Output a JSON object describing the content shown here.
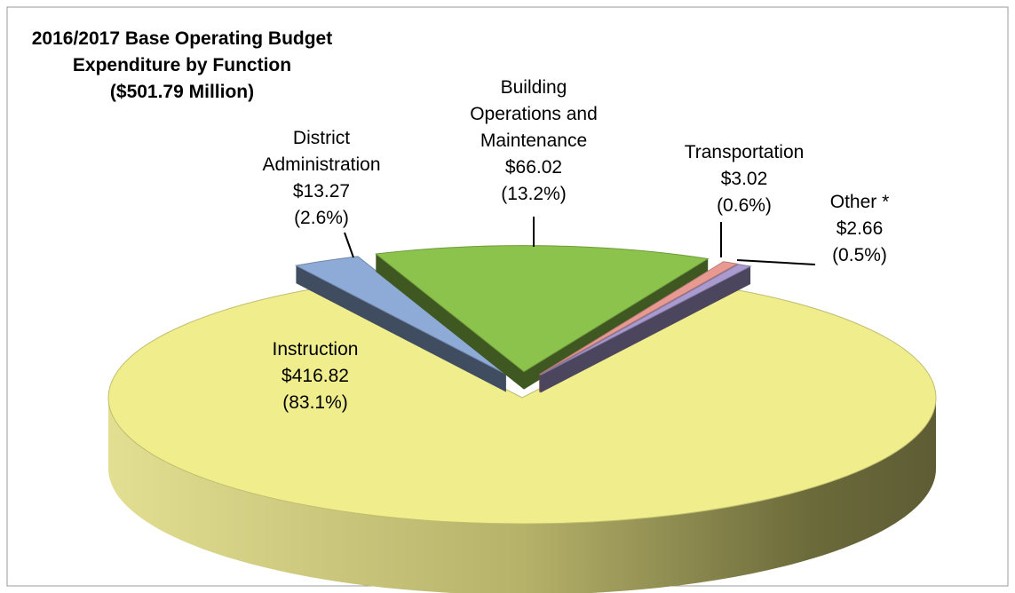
{
  "chart_data": {
    "type": "pie",
    "title": [
      "2016/2017 Base Operating Budget",
      "Expenditure by Function",
      "($501.79 Million)"
    ],
    "categories": [
      [
        "Instruction"
      ],
      [
        "District",
        "Administration"
      ],
      [
        "Building",
        "Operations and",
        "Maintenance"
      ],
      [
        "Transportation"
      ],
      [
        "Other *"
      ]
    ],
    "values": [
      416.82,
      13.27,
      66.02,
      3.02,
      2.66
    ],
    "value_labels": [
      "$416.82",
      "$13.27",
      "$66.02",
      "$3.02",
      "$2.66"
    ],
    "percents": [
      83.1,
      2.6,
      13.2,
      0.6,
      0.5
    ],
    "percent_labels": [
      "(83.1%)",
      "(2.6%)",
      "(13.2%)",
      "(0.6%)",
      "(0.5%)"
    ],
    "colors": [
      "#f0ee8c",
      "#8eaad6",
      "#8cc34c",
      "#e89a92",
      "#a99ad0"
    ],
    "exploded": [
      false,
      true,
      true,
      true,
      true
    ]
  }
}
